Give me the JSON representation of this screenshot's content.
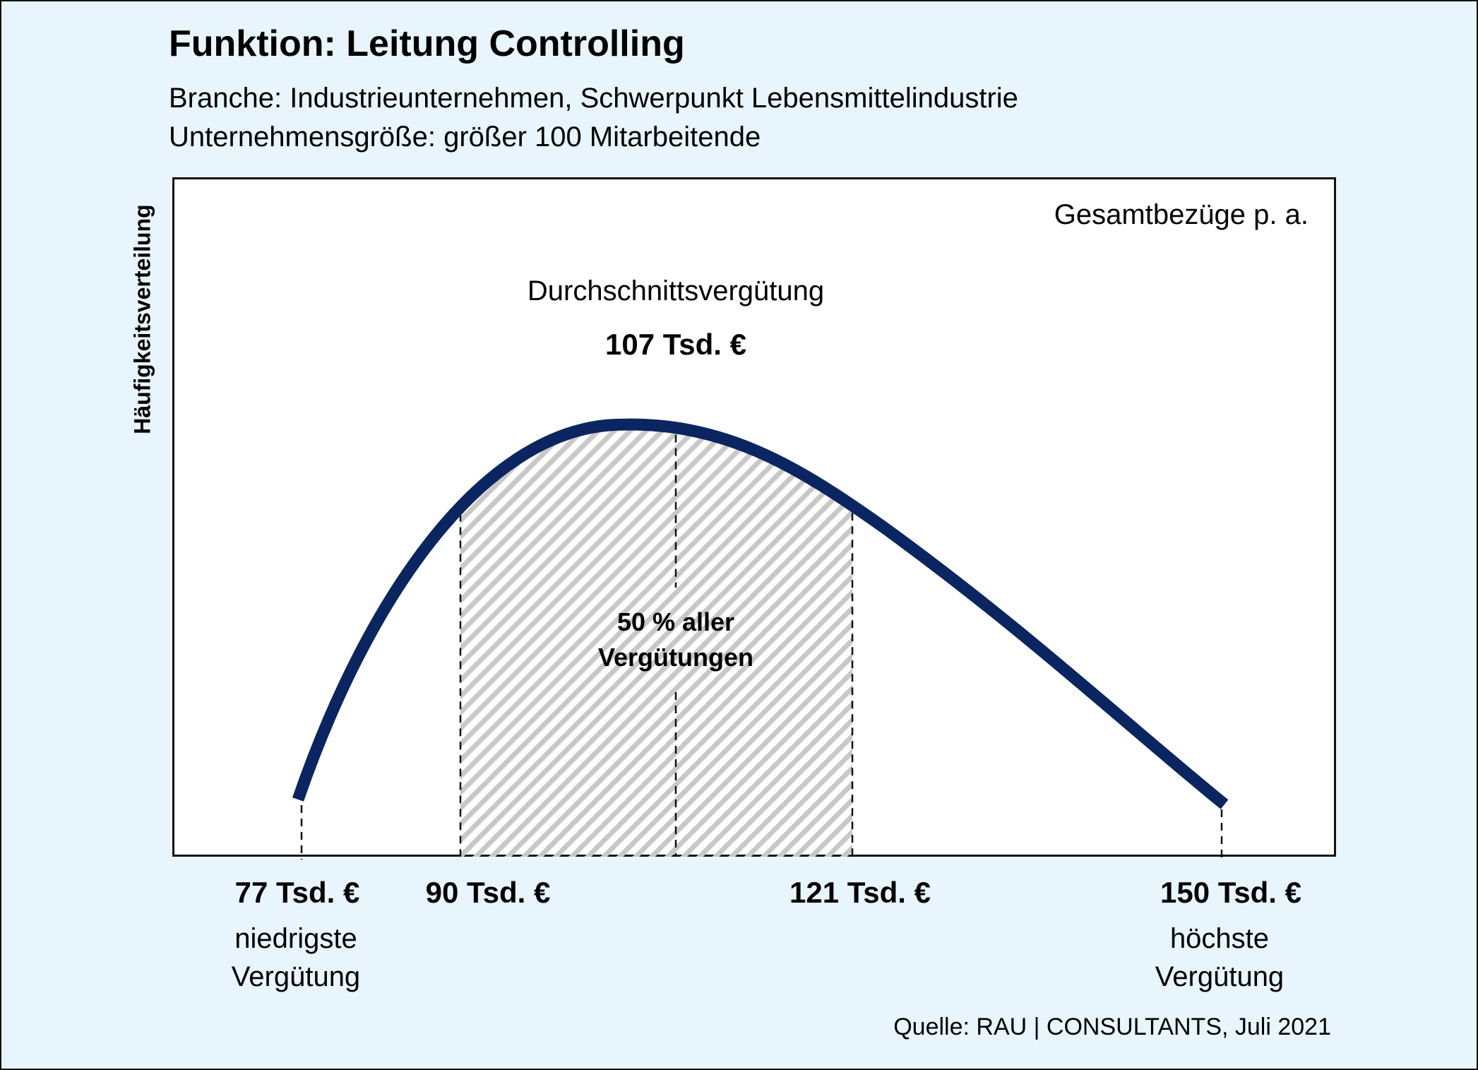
{
  "chart_data": {
    "type": "area",
    "title": "Funktion: Leitung Controlling",
    "subtitle_1": "Branche: Industrieunternehmen, Schwerpunkt Lebensmittelindustrie",
    "subtitle_2": "Unternehmensgröße: größer 100 Mitarbeitende",
    "ylabel": "Häufigkeitsverteilung",
    "corner_label": "Gesamtbezüge p. a.",
    "average": {
      "label": "Durchschnittsvergütung",
      "value_text": "107 Tsd. €",
      "value": 107
    },
    "quartile_band": {
      "from": 90,
      "to": 121,
      "label_line1": "50 % aller",
      "label_line2": "Vergütungen"
    },
    "x_ticks": [
      {
        "value": 77,
        "label": "77 Tsd. €",
        "desc_1": "niedrigste",
        "desc_2": "Vergütung"
      },
      {
        "value": 90,
        "label": "90 Tsd. €"
      },
      {
        "value": 121,
        "label": "121 Tsd. €"
      },
      {
        "value": 150,
        "label": "150 Tsd. €",
        "desc_1": "höchste",
        "desc_2": "Vergütung"
      }
    ],
    "curve_color": "#0b2561",
    "hatch_color": "#c8c8c8",
    "source": "Quelle: RAU | CONSULTANTS, Juli 2021"
  }
}
